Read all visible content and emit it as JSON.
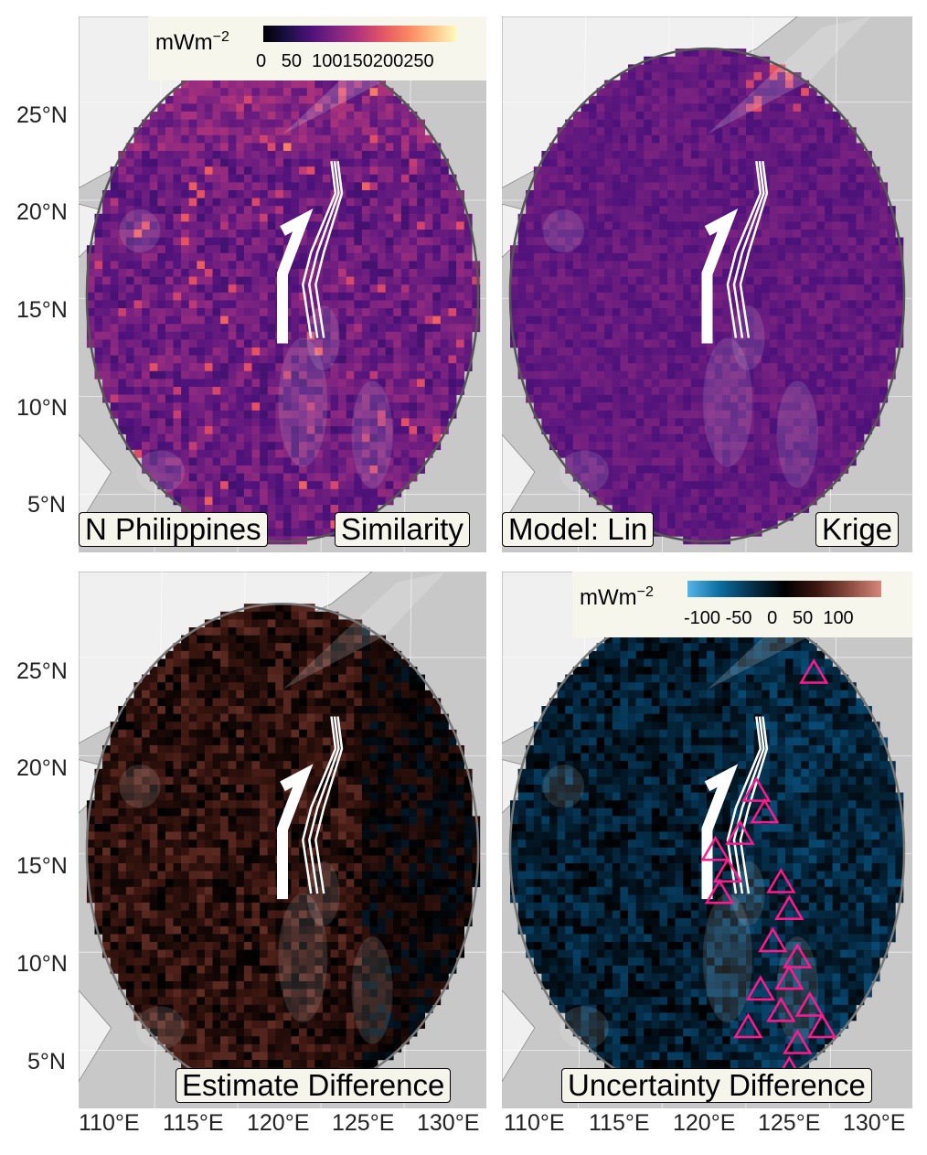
{
  "panels": [
    {
      "id": "top-left",
      "palette": "magma",
      "labels": {
        "left": "N Philippines",
        "right": "Similarity"
      },
      "has_legend": true
    },
    {
      "id": "top-right",
      "palette": "magma",
      "labels": {
        "left": "Model: Lin",
        "right": "Krige"
      },
      "has_legend": false
    },
    {
      "id": "bottom-left",
      "palette": "diverging",
      "labels": {
        "left": "",
        "right": "Estimate Difference"
      },
      "has_legend": false
    },
    {
      "id": "bottom-right",
      "palette": "diverging",
      "labels": {
        "left": "",
        "right": "Uncertainty Difference"
      },
      "has_legend": true,
      "has_triangles": true
    }
  ],
  "legend_top": {
    "unit": "mWm",
    "unit_exp": "−2",
    "scale": "magma",
    "range": [
      0,
      270
    ],
    "tick_values": [
      0,
      50,
      100,
      150,
      200,
      250
    ],
    "tick_text": "0   50  100150200250"
  },
  "legend_bottom": {
    "unit": "mWm",
    "unit_exp": "−2",
    "scale": "diverging blue-black-red",
    "range": [
      -130,
      110
    ],
    "tick_values": [
      -100,
      -50,
      0,
      50,
      100
    ],
    "tick_text": "-100 -50   0   50  100"
  },
  "axes": {
    "y_ticks": [
      "25°N",
      "20°N",
      "15°N",
      "10°N",
      "5°N"
    ],
    "x_ticks": [
      "110°E",
      "115°E",
      "120°E",
      "125°E",
      "130°E"
    ]
  },
  "colors": {
    "land": "#f0f0f0",
    "sea": "#c8c8c8",
    "boundary": "#555555",
    "triangle": "#ff1a8c",
    "segment": "#ffffff",
    "label_bg": "#f5f5ec"
  },
  "features": {
    "trench_segments": "white segment lines",
    "observation_markers": "magenta triangles"
  }
}
